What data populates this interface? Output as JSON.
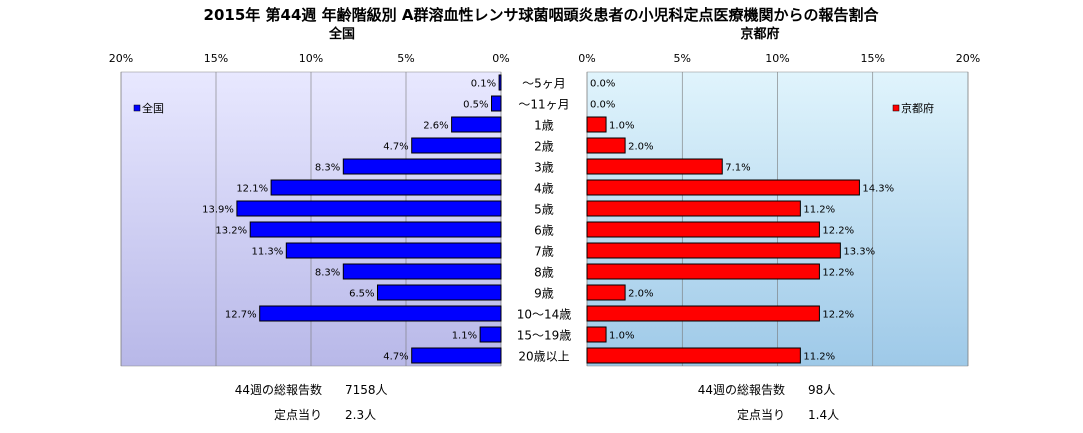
{
  "chart_data": {
    "type": "bar",
    "title": "2015年 第44週 年齢階級別 A群溶血性レンサ球菌咽頭炎患者の小児科定点医療機関からの報告割合",
    "categories": [
      "～5ヶ月",
      "～11ヶ月",
      "1歳",
      "2歳",
      "3歳",
      "4歳",
      "5歳",
      "6歳",
      "7歳",
      "8歳",
      "9歳",
      "10～14歳",
      "15～19歳",
      "20歳以上"
    ],
    "panels": [
      {
        "heading": "全国",
        "legend": "全国",
        "legend_position": "left",
        "bar_color": "#0000ff",
        "xlim": [
          0,
          20
        ],
        "ticks": [
          "20%",
          "15%",
          "10%",
          "5%",
          "0%"
        ],
        "values": [
          0.1,
          0.5,
          2.6,
          4.7,
          8.3,
          12.1,
          13.9,
          13.2,
          11.3,
          8.3,
          6.5,
          12.7,
          1.1,
          4.7
        ],
        "labels": [
          "0.1%",
          "0.5%",
          "2.6%",
          "4.7%",
          "8.3%",
          "12.1%",
          "13.9%",
          "13.2%",
          "11.3%",
          "8.3%",
          "6.5%",
          "12.7%",
          "1.1%",
          "4.7%"
        ],
        "footer": [
          {
            "label": "44週の総報告数",
            "value": "7158人"
          },
          {
            "label": "定点当り",
            "value": "2.3人"
          }
        ]
      },
      {
        "heading": "京都府",
        "legend": "京都府",
        "legend_position": "right",
        "bar_color": "#ff0000",
        "xlim": [
          0,
          20
        ],
        "ticks": [
          "0%",
          "5%",
          "10%",
          "15%",
          "20%"
        ],
        "values": [
          0.0,
          0.0,
          1.0,
          2.0,
          7.1,
          14.3,
          11.2,
          12.2,
          13.3,
          12.2,
          2.0,
          12.2,
          1.0,
          11.2
        ],
        "labels": [
          "0.0%",
          "0.0%",
          "1.0%",
          "2.0%",
          "7.1%",
          "14.3%",
          "11.2%",
          "12.2%",
          "13.3%",
          "12.2%",
          "2.0%",
          "12.2%",
          "1.0%",
          "11.2%"
        ],
        "footer": [
          {
            "label": "44週の総報告数",
            "value": "98人"
          },
          {
            "label": "定点当り",
            "value": "1.4人"
          }
        ]
      }
    ],
    "grid": true
  }
}
